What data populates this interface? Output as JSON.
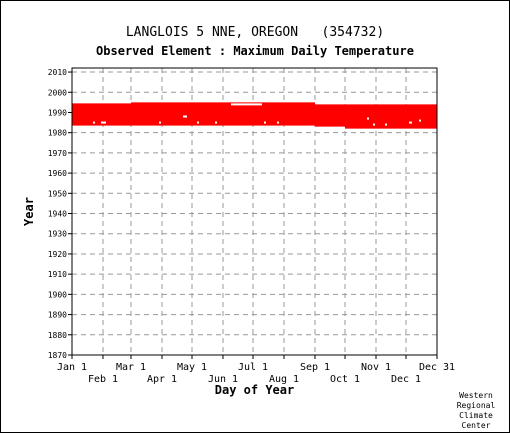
{
  "chart_data": {
    "type": "bar",
    "title": "LANGLOIS 5 NNE, OREGON   (354732)",
    "subtitle": "Observed Element : Maximum Daily Temperature",
    "xlabel": "Day of Year",
    "ylabel": "Year",
    "xlim": [
      1,
      366
    ],
    "ylim": [
      1870,
      2012
    ],
    "x_ticks": [
      {
        "label": "Jan 1",
        "day": 1,
        "row": 0
      },
      {
        "label": "Feb 1",
        "day": 32,
        "row": 1
      },
      {
        "label": "Mar 1",
        "day": 60,
        "row": 0
      },
      {
        "label": "Apr 1",
        "day": 91,
        "row": 1
      },
      {
        "label": "May 1",
        "day": 121,
        "row": 0
      },
      {
        "label": "Jun 1",
        "day": 152,
        "row": 1
      },
      {
        "label": "Jul 1",
        "day": 182,
        "row": 0
      },
      {
        "label": "Aug 1",
        "day": 213,
        "row": 1
      },
      {
        "label": "Sep 1",
        "day": 244,
        "row": 0
      },
      {
        "label": "Oct 1",
        "day": 274,
        "row": 1
      },
      {
        "label": "Nov 1",
        "day": 305,
        "row": 0
      },
      {
        "label": "Dec 1",
        "day": 335,
        "row": 1
      },
      {
        "label": "Dec 31",
        "day": 366,
        "row": 0
      }
    ],
    "y_ticks": [
      2010,
      2000,
      1990,
      1980,
      1970,
      1960,
      1950,
      1940,
      1930,
      1920,
      1910,
      1900,
      1890,
      1880,
      1870
    ],
    "grid": true,
    "series_color": "#ff0000",
    "segments": [
      {
        "x0": 1,
        "x1": 60,
        "y0": 1983.5,
        "y1": 1994.5
      },
      {
        "x0": 60,
        "x1": 244,
        "y0": 1983.5,
        "y1": 1995
      },
      {
        "x0": 244,
        "x1": 274,
        "y0": 1983,
        "y1": 1994
      },
      {
        "x0": 274,
        "x1": 366,
        "y0": 1982,
        "y1": 1994
      }
    ],
    "missing": [
      {
        "x0": 22,
        "x1": 24,
        "y": 1985
      },
      {
        "x0": 30,
        "x1": 35,
        "y": 1985
      },
      {
        "x0": 88,
        "x1": 90,
        "y": 1985
      },
      {
        "x0": 112,
        "x1": 116,
        "y": 1988
      },
      {
        "x0": 126,
        "x1": 128,
        "y": 1985
      },
      {
        "x0": 144,
        "x1": 146,
        "y": 1985
      },
      {
        "x0": 160,
        "x1": 191,
        "y": 1994
      },
      {
        "x0": 193,
        "x1": 195,
        "y": 1985
      },
      {
        "x0": 206,
        "x1": 208,
        "y": 1985
      },
      {
        "x0": 296,
        "x1": 298,
        "y": 1987
      },
      {
        "x0": 302,
        "x1": 304,
        "y": 1984
      },
      {
        "x0": 314,
        "x1": 316,
        "y": 1984
      },
      {
        "x0": 338,
        "x1": 341,
        "y": 1985
      },
      {
        "x0": 348,
        "x1": 350,
        "y": 1986
      }
    ]
  },
  "credit": [
    "Western",
    "Regional",
    "Climate",
    "Center"
  ]
}
